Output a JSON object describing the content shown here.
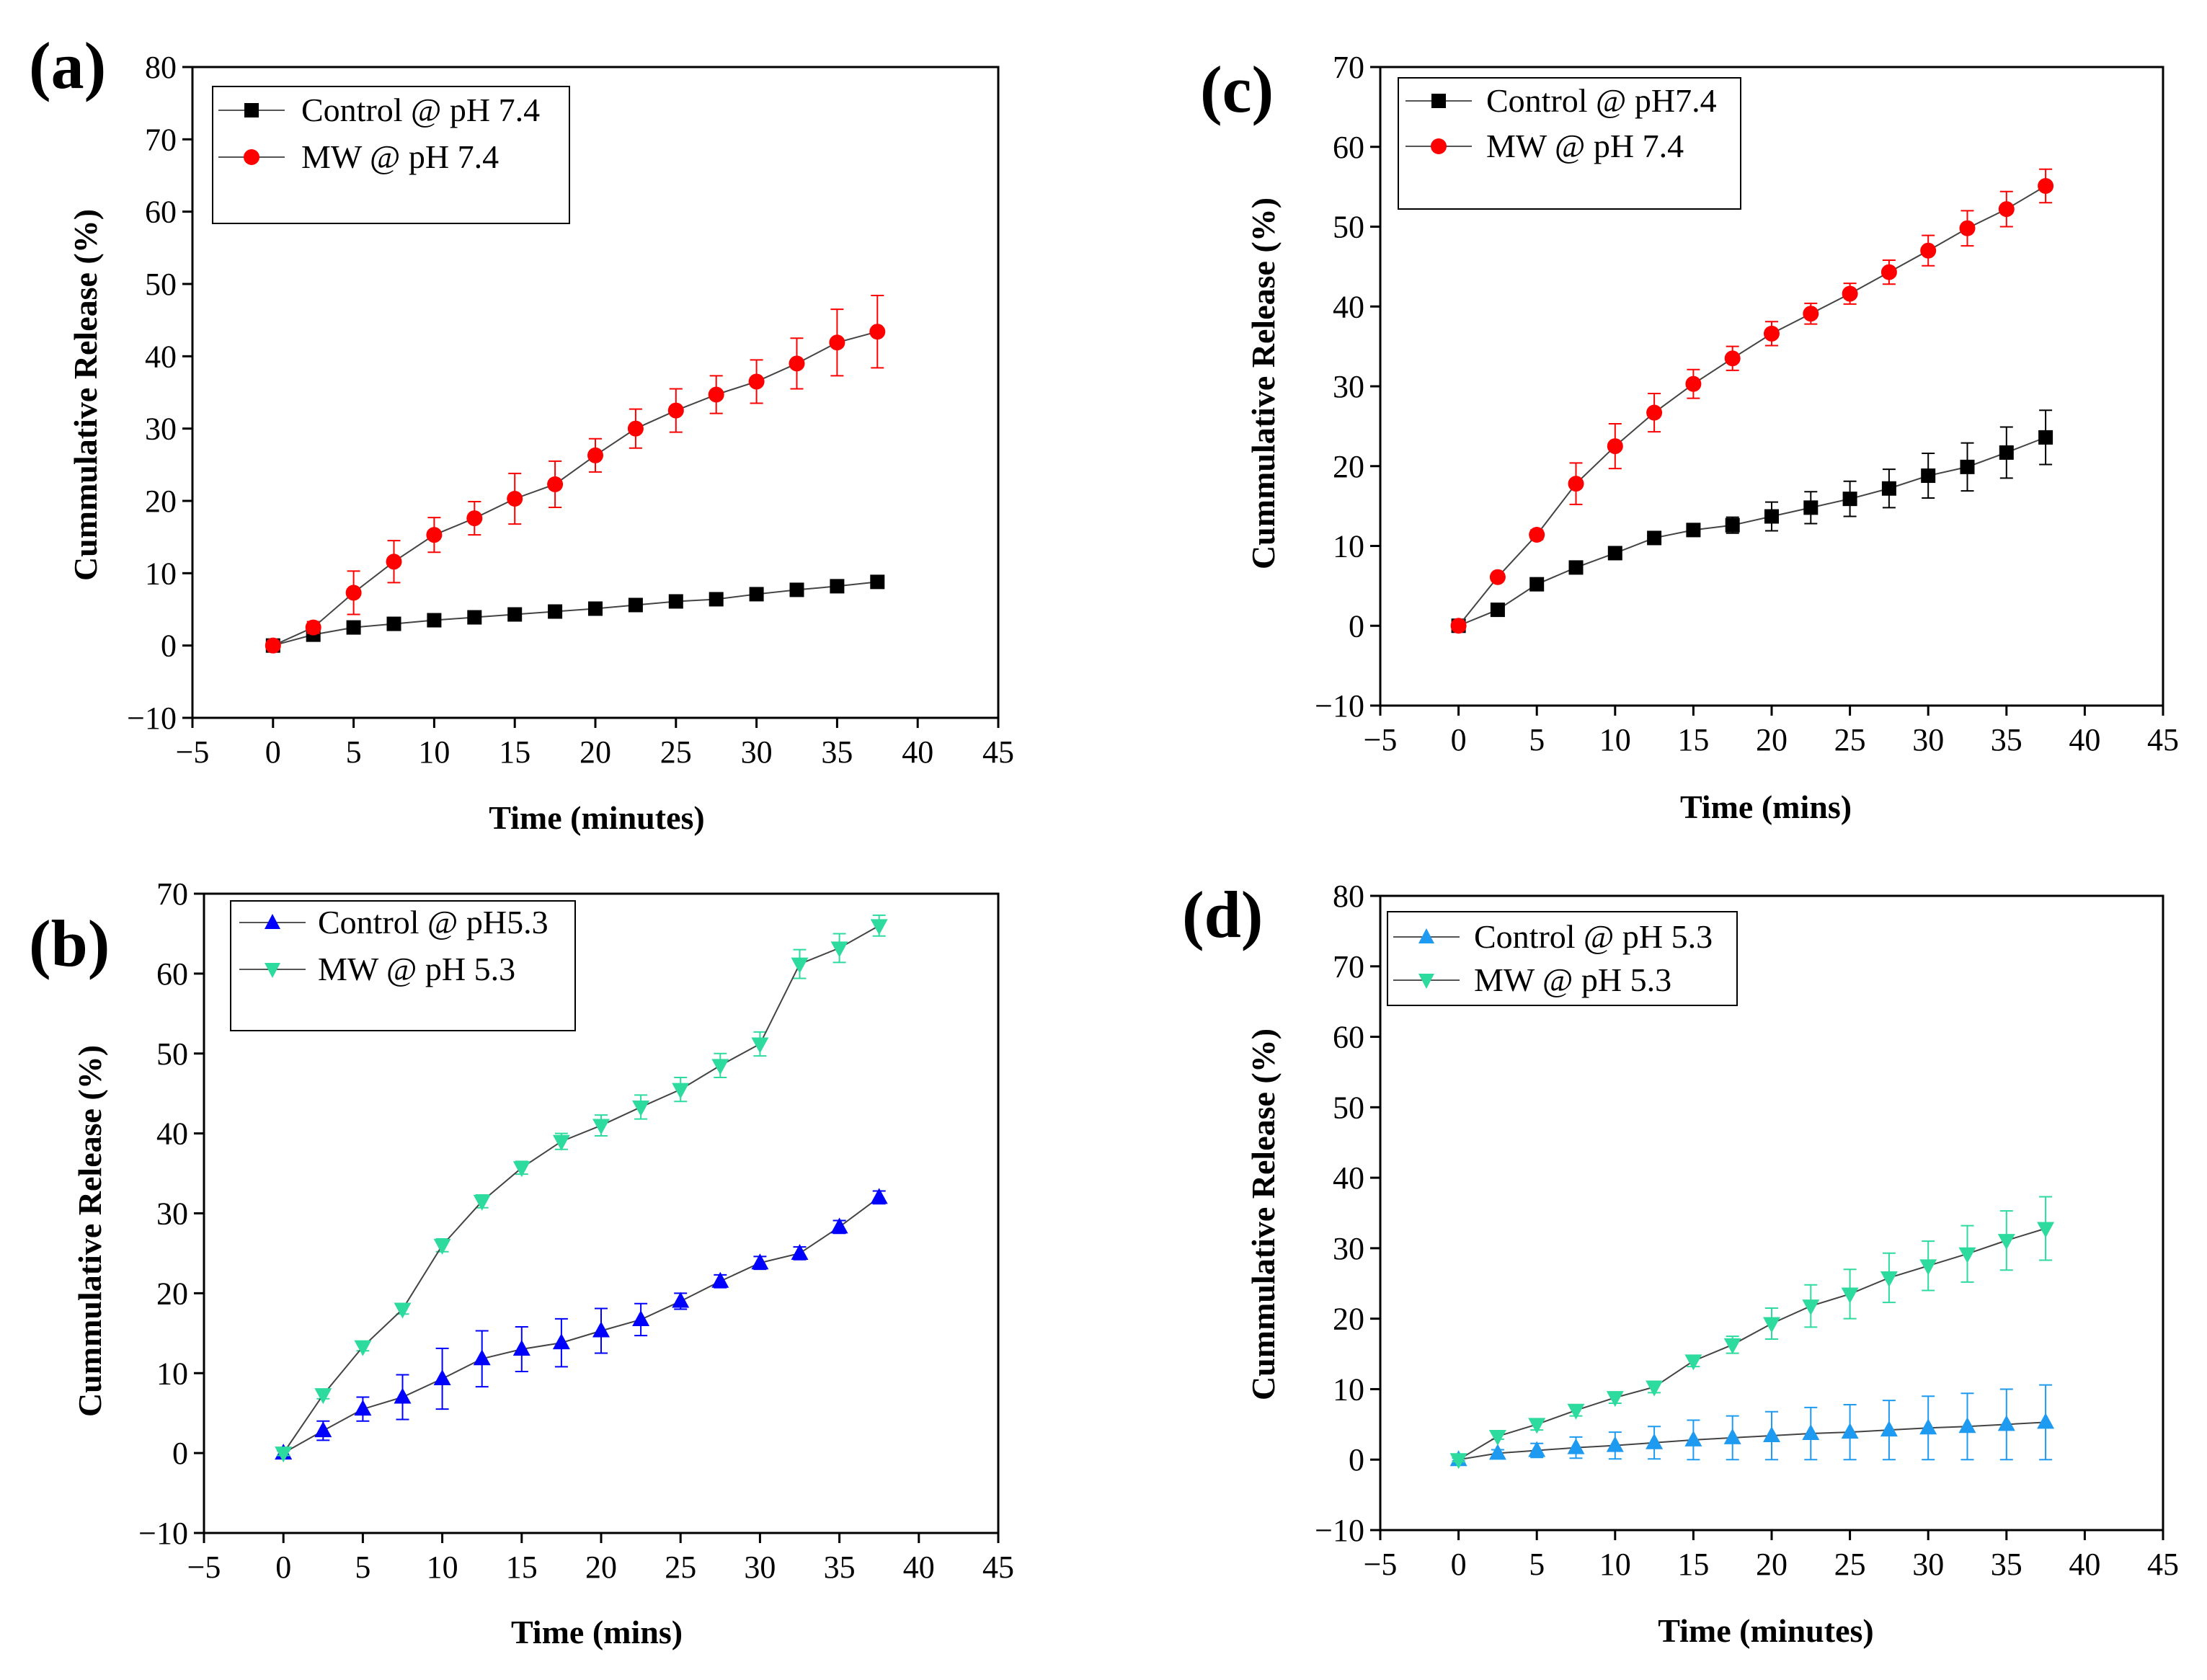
{
  "chart_data": [
    {
      "panel": "(a)",
      "type": "line",
      "xlabel": "Time (minutes)",
      "ylabel": "Cummulative Release (%)",
      "xlim": [
        -5,
        45
      ],
      "ylim": [
        -10,
        80
      ],
      "xticks": [
        -5,
        0,
        5,
        10,
        15,
        20,
        25,
        30,
        35,
        40,
        45
      ],
      "yticks": [
        -10,
        0,
        10,
        20,
        30,
        40,
        50,
        60,
        70,
        80
      ],
      "legend_position": "top-left",
      "series": [
        {
          "name": "Control @ pH 7.4",
          "marker": "square",
          "color": "#000000",
          "x": [
            0,
            2.5,
            5,
            7.5,
            10,
            12.5,
            15,
            17.5,
            20,
            22.5,
            25,
            27.5,
            30,
            32.5,
            35,
            37.5
          ],
          "y": [
            0,
            1.5,
            2.5,
            3.0,
            3.5,
            3.9,
            4.3,
            4.7,
            5.1,
            5.6,
            6.1,
            6.4,
            7.1,
            7.7,
            8.2,
            8.8
          ],
          "err": [
            0.2,
            0.3,
            0.3,
            0.3,
            0.3,
            0.3,
            0.3,
            0.3,
            0.3,
            0.3,
            0.3,
            0.3,
            0.4,
            0.4,
            0.4,
            0.5
          ]
        },
        {
          "name": "MW @ pH 7.4",
          "marker": "circle",
          "color": "#ff0000",
          "x": [
            0,
            2.5,
            5,
            7.5,
            10,
            12.5,
            15,
            17.5,
            20,
            22.5,
            25,
            27.5,
            30,
            32.5,
            35,
            37.5
          ],
          "y": [
            0,
            2.5,
            7.3,
            11.6,
            15.3,
            17.6,
            20.3,
            22.3,
            26.3,
            30.0,
            32.5,
            34.7,
            36.5,
            39.0,
            41.9,
            43.4
          ],
          "err": [
            0.3,
            0.8,
            3.0,
            2.9,
            2.4,
            2.3,
            3.5,
            3.2,
            2.3,
            2.7,
            3.0,
            2.6,
            3.0,
            3.5,
            4.6,
            5.0
          ]
        }
      ]
    },
    {
      "panel": "(b)",
      "type": "line",
      "xlabel": "Time (mins)",
      "ylabel": "Cummulative Release (%)",
      "xlim": [
        -5,
        45
      ],
      "ylim": [
        -10,
        70
      ],
      "xticks": [
        -5,
        0,
        5,
        10,
        15,
        20,
        25,
        30,
        35,
        40,
        45
      ],
      "yticks": [
        -10,
        0,
        10,
        20,
        30,
        40,
        50,
        60,
        70
      ],
      "legend_position": "top-left",
      "series": [
        {
          "name": "Control @ pH5.3",
          "marker": "triangle-up",
          "color": "#0000ff",
          "x": [
            0,
            2.5,
            5,
            7.5,
            10,
            12.5,
            15,
            17.5,
            20,
            22.5,
            25,
            27.5,
            30,
            32.5,
            35,
            37.5
          ],
          "y": [
            0,
            2.8,
            5.5,
            7.0,
            9.3,
            11.8,
            13.0,
            13.8,
            15.3,
            16.7,
            19.0,
            21.5,
            23.8,
            25.0,
            28.3,
            32.0
          ],
          "err": [
            0.3,
            1.2,
            1.5,
            2.8,
            3.8,
            3.5,
            2.8,
            3.0,
            2.8,
            2.0,
            1.0,
            0.8,
            0.8,
            0.8,
            0.8,
            0.8
          ]
        },
        {
          "name": "MW @ pH 5.3",
          "marker": "triangle-down",
          "color": "#2edb9e",
          "x": [
            0,
            2.5,
            5,
            7.5,
            10,
            12.5,
            15,
            17.5,
            20,
            22.5,
            25,
            27.5,
            30,
            32.5,
            35,
            37.5
          ],
          "y": [
            0,
            7.3,
            13.3,
            18.0,
            26.0,
            31.5,
            35.7,
            39.0,
            41.0,
            43.3,
            45.5,
            48.5,
            51.2,
            61.2,
            63.2,
            66.0
          ],
          "err": [
            0.3,
            0.5,
            0.5,
            0.6,
            0.8,
            0.8,
            0.8,
            1.0,
            1.3,
            1.5,
            1.5,
            1.5,
            1.5,
            1.8,
            1.8,
            1.3
          ]
        }
      ]
    },
    {
      "panel": "(c)",
      "type": "line",
      "xlabel": "Time (mins)",
      "ylabel": "Cummulative Release (%)",
      "xlim": [
        -5,
        45
      ],
      "ylim": [
        -10,
        70
      ],
      "xticks": [
        -5,
        0,
        5,
        10,
        15,
        20,
        25,
        30,
        35,
        40,
        45
      ],
      "yticks": [
        -10,
        0,
        10,
        20,
        30,
        40,
        50,
        60,
        70
      ],
      "legend_position": "top-left",
      "series": [
        {
          "name": "Control @ pH7.4",
          "marker": "square",
          "color": "#000000",
          "x": [
            0,
            2.5,
            5,
            7.5,
            10,
            12.5,
            15,
            17.5,
            20,
            22.5,
            25,
            27.5,
            30,
            32.5,
            35,
            37.5
          ],
          "y": [
            0,
            2.0,
            5.2,
            7.3,
            9.1,
            11.0,
            12.0,
            12.6,
            13.7,
            14.8,
            15.9,
            17.2,
            18.8,
            19.9,
            21.7,
            23.6
          ],
          "err": [
            0.2,
            0.4,
            0.5,
            0.6,
            0.6,
            0.8,
            0.8,
            1.0,
            1.8,
            2.0,
            2.2,
            2.4,
            2.8,
            3.0,
            3.2,
            3.4
          ]
        },
        {
          "name": "MW @ pH 7.4",
          "marker": "circle",
          "color": "#ff0000",
          "x": [
            0,
            2.5,
            5,
            7.5,
            10,
            12.5,
            15,
            17.5,
            20,
            22.5,
            25,
            27.5,
            30,
            32.5,
            35,
            37.5
          ],
          "y": [
            0,
            6.1,
            11.4,
            17.8,
            22.5,
            26.7,
            30.3,
            33.5,
            36.6,
            39.1,
            41.6,
            44.3,
            47.0,
            49.8,
            52.2,
            55.1
          ],
          "err": [
            0.2,
            0.4,
            0.6,
            2.6,
            2.8,
            2.4,
            1.8,
            1.5,
            1.5,
            1.3,
            1.3,
            1.5,
            1.9,
            2.2,
            2.2,
            2.1
          ]
        }
      ]
    },
    {
      "panel": "(d)",
      "type": "line",
      "xlabel": "Time (minutes)",
      "ylabel": "Cummulative Release (%)",
      "xlim": [
        -5,
        45
      ],
      "ylim": [
        -10,
        80
      ],
      "xticks": [
        -5,
        0,
        5,
        10,
        15,
        20,
        25,
        30,
        35,
        40,
        45
      ],
      "yticks": [
        -10,
        0,
        10,
        20,
        30,
        40,
        50,
        60,
        70,
        80
      ],
      "legend_position": "top-left",
      "series": [
        {
          "name": "Control @ pH 5.3",
          "marker": "triangle-up",
          "color": "#1e9bf0",
          "x": [
            0,
            2.5,
            5,
            7.5,
            10,
            12.5,
            15,
            17.5,
            20,
            22.5,
            25,
            27.5,
            30,
            32.5,
            35,
            37.5
          ],
          "y": [
            0,
            0.9,
            1.3,
            1.7,
            2.0,
            2.4,
            2.8,
            3.1,
            3.4,
            3.7,
            3.9,
            4.2,
            4.5,
            4.7,
            5.0,
            5.3
          ],
          "err": [
            0.2,
            0.5,
            1.0,
            1.5,
            1.9,
            2.3,
            2.8,
            3.1,
            3.4,
            3.7,
            3.9,
            4.2,
            4.5,
            4.7,
            5.0,
            5.3
          ]
        },
        {
          "name": "MW @ pH 5.3",
          "marker": "triangle-down",
          "color": "#2edb9e",
          "x": [
            0,
            2.5,
            5,
            7.5,
            10,
            12.5,
            15,
            17.5,
            20,
            22.5,
            25,
            27.5,
            30,
            32.5,
            35,
            37.5
          ],
          "y": [
            0,
            3.3,
            5.0,
            7.0,
            8.8,
            10.3,
            14.0,
            16.3,
            19.3,
            21.8,
            23.5,
            25.8,
            27.5,
            29.2,
            31.1,
            32.8
          ],
          "err": [
            0.3,
            0.4,
            0.8,
            0.8,
            0.8,
            0.8,
            0.8,
            1.2,
            2.2,
            3.0,
            3.5,
            3.5,
            3.5,
            4.0,
            4.2,
            4.5
          ]
        }
      ]
    }
  ]
}
